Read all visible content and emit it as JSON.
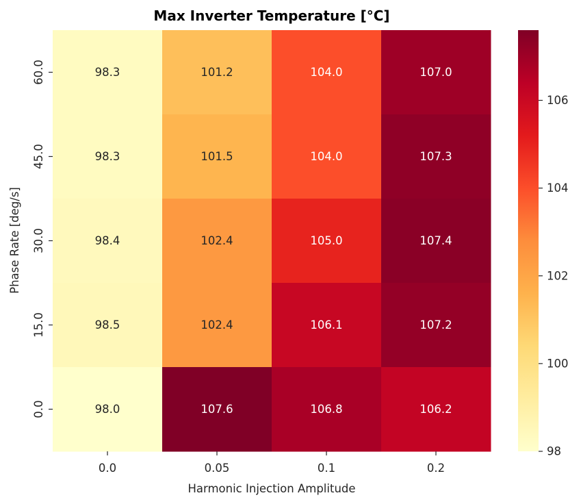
{
  "chart_data": {
    "type": "heatmap",
    "title": "Max Inverter Temperature [°C]",
    "xlabel": "Harmonic Injection Amplitude",
    "ylabel": "Phase Rate [deg/s]",
    "x_categories": [
      "0.0",
      "0.05",
      "0.1",
      "0.2"
    ],
    "y_categories": [
      "60.0",
      "45.0",
      "30.0",
      "15.0",
      "0.0"
    ],
    "values": [
      [
        98.3,
        101.2,
        104.0,
        107.0
      ],
      [
        98.3,
        101.5,
        104.0,
        107.3
      ],
      [
        98.4,
        102.4,
        105.0,
        107.4
      ],
      [
        98.5,
        102.4,
        106.1,
        107.2
      ],
      [
        98.0,
        107.6,
        106.8,
        106.2
      ]
    ],
    "value_format": "0.1f",
    "colormap": "YlOrRd",
    "color_range": [
      98.0,
      107.6
    ],
    "colorbar_ticks": [
      "98",
      "100",
      "102",
      "104",
      "106"
    ],
    "colorbar_tick_values": [
      98,
      100,
      102,
      104,
      106
    ],
    "colorbar_position": "right"
  }
}
